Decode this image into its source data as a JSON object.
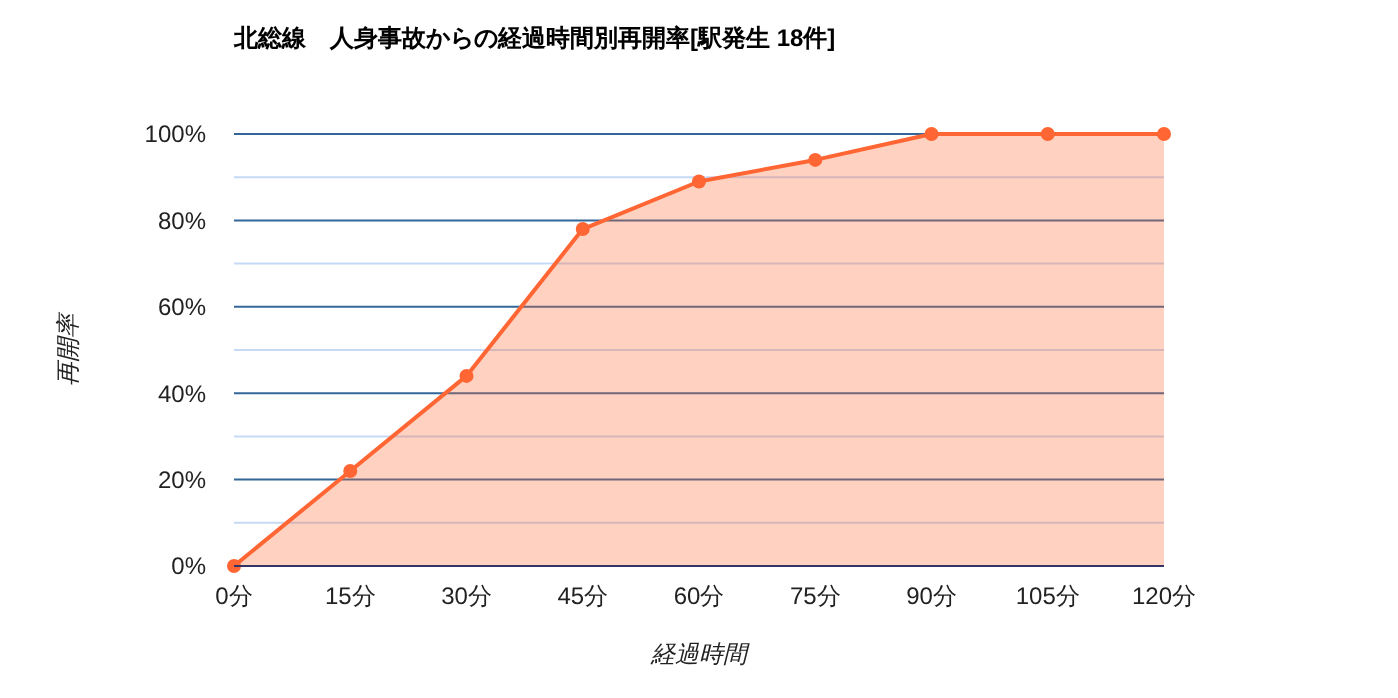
{
  "chart_data": {
    "type": "area",
    "title": "北総線　人身事故からの経過時間別再開率[駅発生 18件]",
    "xlabel": "経過時間",
    "ylabel": "再開率",
    "x": [
      0,
      15,
      30,
      45,
      60,
      75,
      90,
      105,
      120
    ],
    "series": [
      {
        "color": "#ff6633",
        "values": [
          0,
          22,
          44,
          78,
          89,
          94,
          100,
          100,
          100
        ]
      }
    ],
    "xlim": [
      0,
      120
    ],
    "xticks": [
      {
        "value": 0,
        "label": "0分"
      },
      {
        "value": 15,
        "label": "15分"
      },
      {
        "value": 30,
        "label": "30分"
      },
      {
        "value": 45,
        "label": "45分"
      },
      {
        "value": 60,
        "label": "60分"
      },
      {
        "value": 75,
        "label": "75分"
      },
      {
        "value": 90,
        "label": "90分"
      },
      {
        "value": 105,
        "label": "105分"
      },
      {
        "value": 120,
        "label": "120分"
      }
    ],
    "ylim": [
      0,
      100
    ],
    "yticks": [
      {
        "value": 0,
        "label": "0%"
      },
      {
        "value": 10,
        "label": null
      },
      {
        "value": 20,
        "label": "20%"
      },
      {
        "value": 30,
        "label": null
      },
      {
        "value": 40,
        "label": "40%"
      },
      {
        "value": 50,
        "label": null
      },
      {
        "value": 60,
        "label": "60%"
      },
      {
        "value": 70,
        "label": null
      },
      {
        "value": 80,
        "label": "80%"
      },
      {
        "value": 90,
        "label": null
      },
      {
        "value": 100,
        "label": "100%"
      }
    ],
    "grid": "y",
    "marker": "circle"
  }
}
